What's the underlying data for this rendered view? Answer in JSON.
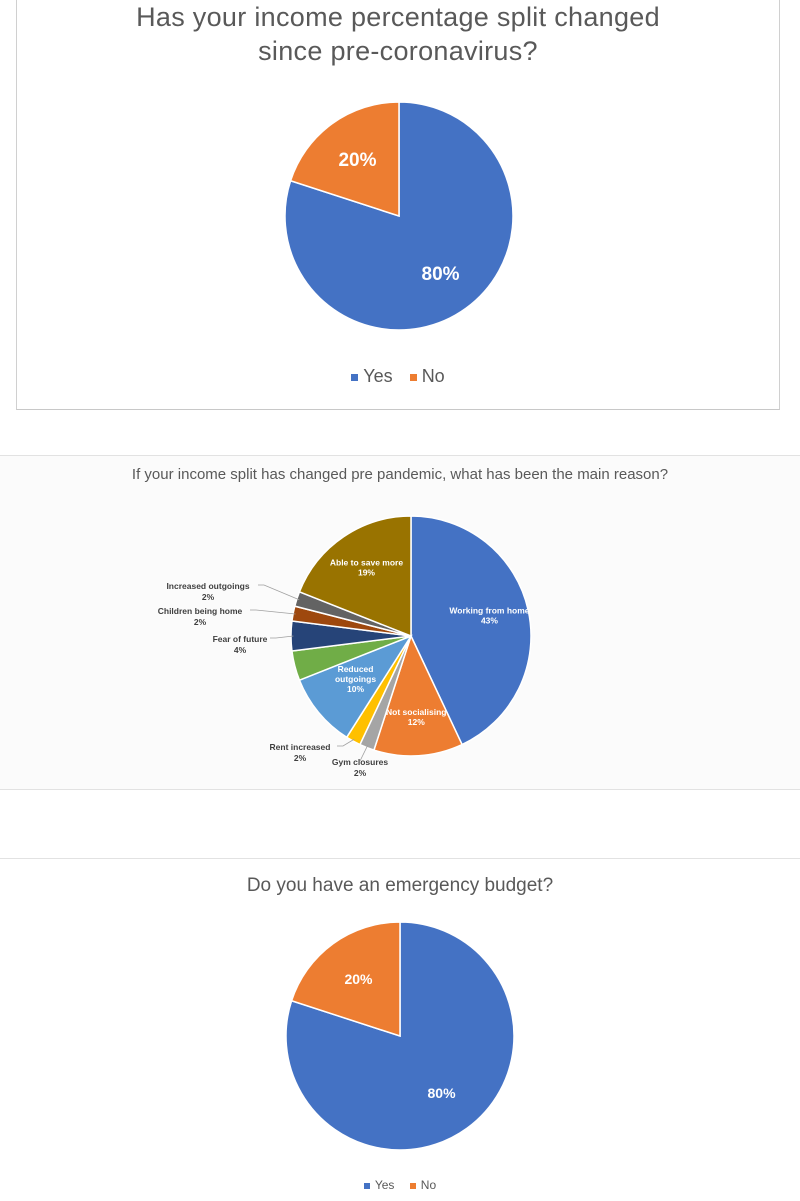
{
  "colors": {
    "blue": "#4472c4",
    "orange": "#ed7d31",
    "gray": "#a5a5a5",
    "gold": "#ffc000",
    "lightblue": "#5b9bd5",
    "green": "#70ad47",
    "navy": "#264478",
    "brown": "#9e480e",
    "darkgray": "#636363",
    "olive": "#997300"
  },
  "chart_data": [
    {
      "type": "pie",
      "title": "Has your income percentage split changed since pre-coronavirus?",
      "title_lines": [
        "Has your income percentage split changed",
        "since pre-coronavirus?"
      ],
      "slices": [
        {
          "name": "Yes",
          "value": 80,
          "label": "80%",
          "color": "#4472c4"
        },
        {
          "name": "No",
          "value": 20,
          "label": "20%",
          "color": "#ed7d31"
        }
      ],
      "legend": [
        "Yes",
        "No"
      ],
      "legend_position": "bottom"
    },
    {
      "type": "pie",
      "title": "If your income split has changed pre pandemic, what has been the main reason?",
      "slices": [
        {
          "name": "Working from home",
          "value": 43,
          "label": "43%",
          "color": "#4472c4"
        },
        {
          "name": "Not socialising",
          "value": 12,
          "label": "12%",
          "color": "#ed7d31"
        },
        {
          "name": "Gym closures",
          "value": 2,
          "label": "2%",
          "color": "#a5a5a5"
        },
        {
          "name": "Rent increased",
          "value": 2,
          "label": "2%",
          "color": "#ffc000"
        },
        {
          "name": "Reduced outgoings",
          "value": 10,
          "label": "10%",
          "color": "#5b9bd5"
        },
        {
          "name": "",
          "value": 4,
          "label": "",
          "color": "#70ad47"
        },
        {
          "name": "Fear of future",
          "value": 4,
          "label": "4%",
          "color": "#264478"
        },
        {
          "name": "Children being home",
          "value": 2,
          "label": "2%",
          "color": "#9e480e"
        },
        {
          "name": "Increased outgoings",
          "value": 2,
          "label": "2%",
          "color": "#636363"
        },
        {
          "name": "Able to save more",
          "value": 19,
          "label": "19%",
          "color": "#997300"
        }
      ]
    },
    {
      "type": "pie",
      "title": "Do you have an emergency budget?",
      "slices": [
        {
          "name": "Yes",
          "value": 80,
          "label": "80%",
          "color": "#4472c4"
        },
        {
          "name": "No",
          "value": 20,
          "label": "20%",
          "color": "#ed7d31"
        }
      ],
      "legend": [
        "Yes",
        "No"
      ],
      "legend_position": "bottom"
    }
  ]
}
